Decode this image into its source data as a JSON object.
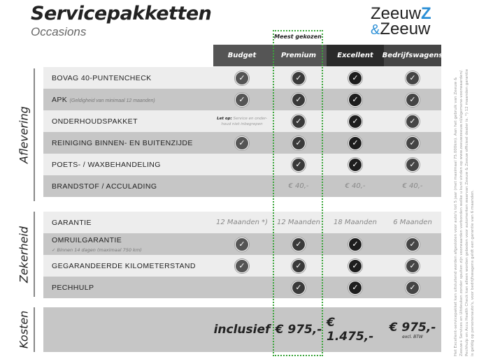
{
  "header": {
    "title": "Servicepakketten",
    "subtitle": "Occasions",
    "logo_text": "Zeeuw & Zeeuw"
  },
  "highlight": {
    "label": "Meest gekozen",
    "color": "#3aa53a"
  },
  "columns": [
    "Budget",
    "Premium",
    "Excellent",
    "Bedrijfswagens"
  ],
  "column_colors": [
    "#555555",
    "#555555",
    "#2a2a2a",
    "#454545"
  ],
  "sections": {
    "aflevering": "Aflevering",
    "zekerheid": "Zekerheid",
    "kosten": "Kosten"
  },
  "aflevering_rows": [
    {
      "label": "BOVAG 40-PUNTENCHECK",
      "values": [
        "check",
        "check",
        "check",
        "check"
      ]
    },
    {
      "label": "APK",
      "note": "(Geldigheid van minimaal 12 maanden)",
      "values": [
        "check",
        "check",
        "check",
        "check"
      ]
    },
    {
      "label": "ONDERHOUDSPAKKET",
      "budget_note_bold": "Let op:",
      "budget_note": "Service en onder-houd niet inbegrepen",
      "values": [
        "",
        "check",
        "check",
        "check"
      ]
    },
    {
      "label": "REINIGING BINNEN- EN BUITENZIJDE",
      "values": [
        "check",
        "check",
        "check",
        "check"
      ]
    },
    {
      "label": "POETS- / WAXBEHANDELING",
      "values": [
        "",
        "check",
        "check",
        "check"
      ]
    },
    {
      "label": "BRANDSTOF / ACCULADING",
      "values": [
        "",
        "€ 40,-",
        "€ 40,-",
        "€ 40,-"
      ]
    }
  ],
  "zekerheid_rows": [
    {
      "label": "GARANTIE",
      "values": [
        "12 Maanden *)",
        "12 Maanden",
        "18 Maanden",
        "6 Maanden"
      ]
    },
    {
      "label": "OMRUILGARANTIE",
      "sub": "✓  Binnen 14 dagen (maximaal 750 km)",
      "values": [
        "check",
        "check",
        "check",
        "check"
      ]
    },
    {
      "label": "GEGARANDEERDE KILOMETERSTAND",
      "values": [
        "check",
        "check",
        "check",
        "check"
      ]
    },
    {
      "label": "PECHHULP",
      "values": [
        "",
        "check",
        "check",
        "check"
      ]
    }
  ],
  "kosten": {
    "values": [
      "inclusief",
      "€ 975,-",
      "€ 1.475,-",
      "€ 975,-"
    ],
    "bedrijf_note": "excl. BTW"
  },
  "footnote": "Het Excellent-servicepakket kan uitsluitend worden afgesloten voor auto's tot 5 jaar (met maximaal 75.000km). Aan het gebruik van Zeeuw & Zeeuw+ Services en Uitdeuken zonder spuiten zijn voorwaarden verbonden welke u kunt vinden op www.zeeuwzeeuw.nl/algemene-voorwaarden/. Pechhulp en Accu Health Check kan alleen worden geboden voor automerken waarvan Zeeuw & Zeeuw officieel dealer is. *) 12 maanden garantie is geldig op personenauto's, voor bedrijfswagens geldt een garantie van 6 maanden."
}
